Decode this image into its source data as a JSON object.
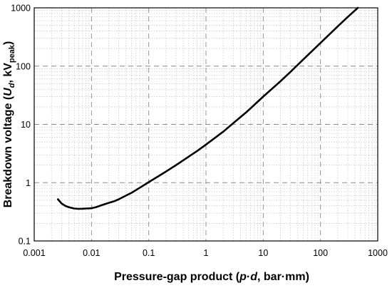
{
  "chart_data": {
    "type": "line",
    "title": "",
    "xlabel": {
      "prefix": "Pressure-gap product (",
      "italic": "p",
      "mid": "·",
      "italic2": "d",
      "suffix": ", bar·mm)"
    },
    "ylabel": {
      "prefix": "Breakdown voltage (",
      "italic": "U",
      "italic_sub": "d",
      "mid": ", kV",
      "sub": "peak",
      "suffix": ")"
    },
    "x_scale": "log",
    "y_scale": "log",
    "xlim": [
      0.001,
      1000
    ],
    "ylim": [
      0.1,
      1000
    ],
    "x_tick_labels": [
      "0.001",
      "0.01",
      "0.1",
      "1",
      "10",
      "100",
      "1000"
    ],
    "y_tick_labels": [
      "0.1",
      "1",
      "10",
      "100",
      "1000"
    ],
    "grid": true,
    "series": [
      {
        "x": [
          0.0026,
          0.003,
          0.0035,
          0.004,
          0.005,
          0.006,
          0.007,
          0.008,
          0.009,
          0.01,
          0.012,
          0.015,
          0.02,
          0.025,
          0.03,
          0.04,
          0.05,
          0.07,
          0.1,
          0.15,
          0.2,
          0.3,
          0.5,
          0.7,
          1,
          2,
          3,
          5,
          10,
          20,
          30,
          50,
          100,
          200,
          300,
          450
        ],
        "y": [
          0.52,
          0.44,
          0.4,
          0.38,
          0.36,
          0.355,
          0.357,
          0.36,
          0.362,
          0.364,
          0.38,
          0.41,
          0.45,
          0.48,
          0.52,
          0.6,
          0.67,
          0.82,
          1.02,
          1.3,
          1.55,
          2.0,
          2.8,
          3.5,
          4.5,
          7.5,
          10.5,
          16,
          30,
          55,
          80,
          130,
          250,
          480,
          700,
          1000
        ]
      }
    ]
  }
}
